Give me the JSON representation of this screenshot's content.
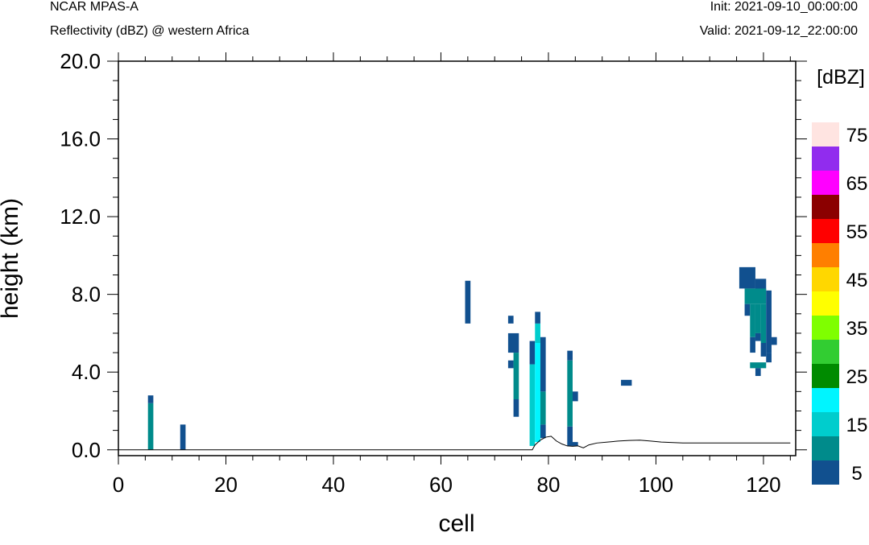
{
  "header": {
    "model": "NCAR MPAS-A",
    "field": "Reflectivity (dBZ) @ western Africa",
    "init": "Init: 2021-09-10_00:00:00",
    "valid": "Valid: 2021-09-12_22:00:00"
  },
  "chart_data": {
    "type": "heatmap",
    "xlabel": "cell",
    "ylabel": "height (km)",
    "xlim": [
      0,
      126
    ],
    "ylim": [
      -0.3,
      20.0
    ],
    "x_ticks": [
      "0",
      "20",
      "40",
      "60",
      "80",
      "100",
      "120"
    ],
    "y_ticks": [
      "0.0",
      "4.0",
      "8.0",
      "12.0",
      "16.0",
      "20.0"
    ],
    "colorbar": {
      "unit_label": "[dBZ]",
      "labels": [
        "5",
        "15",
        "25",
        "35",
        "45",
        "55",
        "65",
        "75"
      ],
      "bins": [
        {
          "from": 0,
          "to": 10,
          "color": "#11508f"
        },
        {
          "from": 10,
          "to": 15,
          "color": "#008b8b"
        },
        {
          "from": 15,
          "to": 20,
          "color": "#00cdcd"
        },
        {
          "from": 20,
          "to": 25,
          "color": "#00f5ff"
        },
        {
          "from": 25,
          "to": 30,
          "color": "#008b00"
        },
        {
          "from": 30,
          "to": 35,
          "color": "#32cd32"
        },
        {
          "from": 35,
          "to": 40,
          "color": "#7fff00"
        },
        {
          "from": 40,
          "to": 45,
          "color": "#ffff00"
        },
        {
          "from": 45,
          "to": 50,
          "color": "#ffd700"
        },
        {
          "from": 50,
          "to": 55,
          "color": "#ff7f00"
        },
        {
          "from": 55,
          "to": 60,
          "color": "#ff0000"
        },
        {
          "from": 60,
          "to": 65,
          "color": "#8b0000"
        },
        {
          "from": 65,
          "to": 70,
          "color": "#ff00ff"
        },
        {
          "from": 70,
          "to": 75,
          "color": "#912cee"
        },
        {
          "from": 75,
          "to": 80,
          "color": "#ffe4e1"
        }
      ]
    },
    "terrain": [
      [
        0,
        0
      ],
      [
        77,
        0
      ],
      [
        77.5,
        0.25
      ],
      [
        78.5,
        0.5
      ],
      [
        79.5,
        0.65
      ],
      [
        80.5,
        0.7
      ],
      [
        81.5,
        0.45
      ],
      [
        82.5,
        0.3
      ],
      [
        83.5,
        0.2
      ],
      [
        84.5,
        0.18
      ],
      [
        85.5,
        0.2
      ],
      [
        86.5,
        0.1
      ],
      [
        87.5,
        0.25
      ],
      [
        89,
        0.35
      ],
      [
        91,
        0.4
      ],
      [
        93,
        0.45
      ],
      [
        95,
        0.48
      ],
      [
        97,
        0.5
      ],
      [
        99,
        0.45
      ],
      [
        101,
        0.4
      ],
      [
        105,
        0.35
      ],
      [
        110,
        0.35
      ],
      [
        115,
        0.35
      ],
      [
        120,
        0.35
      ],
      [
        125,
        0.35
      ]
    ],
    "cells": [
      {
        "x0": 5.5,
        "x1": 6.5,
        "y0": 0.0,
        "y1": 2.4,
        "dbz": 12
      },
      {
        "x0": 5.5,
        "x1": 6.5,
        "y0": 2.4,
        "y1": 2.8,
        "dbz": 6
      },
      {
        "x0": 11.5,
        "x1": 12.5,
        "y0": 0.0,
        "y1": 1.3,
        "dbz": 6
      },
      {
        "x0": 64.5,
        "x1": 65.5,
        "y0": 6.5,
        "y1": 8.7,
        "dbz": 6
      },
      {
        "x0": 72.5,
        "x1": 73.5,
        "y0": 6.5,
        "y1": 6.9,
        "dbz": 6
      },
      {
        "x0": 72.5,
        "x1": 74.5,
        "y0": 5.0,
        "y1": 6.0,
        "dbz": 6
      },
      {
        "x0": 72.5,
        "x1": 73.5,
        "y0": 4.2,
        "y1": 4.6,
        "dbz": 6
      },
      {
        "x0": 73.5,
        "x1": 74.5,
        "y0": 2.6,
        "y1": 5.0,
        "dbz": 12
      },
      {
        "x0": 73.5,
        "x1": 74.5,
        "y0": 1.7,
        "y1": 2.6,
        "dbz": 6
      },
      {
        "x0": 76.5,
        "x1": 77.5,
        "y0": 0.2,
        "y1": 4.4,
        "dbz": 17
      },
      {
        "x0": 76.5,
        "x1": 77.5,
        "y0": 4.4,
        "y1": 5.6,
        "dbz": 6
      },
      {
        "x0": 77.5,
        "x1": 78.5,
        "y0": 0.4,
        "y1": 5.5,
        "dbz": 22
      },
      {
        "x0": 77.5,
        "x1": 78.5,
        "y0": 5.5,
        "y1": 6.5,
        "dbz": 17
      },
      {
        "x0": 77.5,
        "x1": 78.5,
        "y0": 6.5,
        "y1": 7.1,
        "dbz": 6
      },
      {
        "x0": 78.5,
        "x1": 79.5,
        "y0": 0.6,
        "y1": 1.3,
        "dbz": 6
      },
      {
        "x0": 78.5,
        "x1": 79.5,
        "y0": 1.3,
        "y1": 3.0,
        "dbz": 12
      },
      {
        "x0": 78.5,
        "x1": 79.5,
        "y0": 3.0,
        "y1": 5.8,
        "dbz": 6
      },
      {
        "x0": 83.5,
        "x1": 84.5,
        "y0": 0.2,
        "y1": 1.2,
        "dbz": 6
      },
      {
        "x0": 83.5,
        "x1": 84.5,
        "y0": 1.2,
        "y1": 4.6,
        "dbz": 12
      },
      {
        "x0": 83.5,
        "x1": 84.5,
        "y0": 4.6,
        "y1": 5.1,
        "dbz": 6
      },
      {
        "x0": 84.5,
        "x1": 85.5,
        "y0": 2.5,
        "y1": 3.0,
        "dbz": 6
      },
      {
        "x0": 84.5,
        "x1": 85.5,
        "y0": 0.2,
        "y1": 0.4,
        "dbz": 6
      },
      {
        "x0": 93.5,
        "x1": 95.5,
        "y0": 3.3,
        "y1": 3.6,
        "dbz": 6
      },
      {
        "x0": 115.5,
        "x1": 118.5,
        "y0": 8.3,
        "y1": 9.4,
        "dbz": 6
      },
      {
        "x0": 118.5,
        "x1": 120.5,
        "y0": 8.2,
        "y1": 8.8,
        "dbz": 6
      },
      {
        "x0": 116.5,
        "x1": 120.5,
        "y0": 7.5,
        "y1": 8.3,
        "dbz": 12
      },
      {
        "x0": 116.5,
        "x1": 117.5,
        "y0": 6.9,
        "y1": 7.5,
        "dbz": 6
      },
      {
        "x0": 117.5,
        "x1": 118.5,
        "y0": 5.8,
        "y1": 7.5,
        "dbz": 12
      },
      {
        "x0": 117.5,
        "x1": 118.5,
        "y0": 5.8,
        "y1": 5.0,
        "dbz": 6
      },
      {
        "x0": 118.5,
        "x1": 119.5,
        "y0": 6.0,
        "y1": 7.5,
        "dbz": 12
      },
      {
        "x0": 118.5,
        "x1": 119.5,
        "y0": 5.6,
        "y1": 6.0,
        "dbz": 6
      },
      {
        "x0": 119.5,
        "x1": 120.5,
        "y0": 5.5,
        "y1": 7.5,
        "dbz": 12
      },
      {
        "x0": 119.5,
        "x1": 120.5,
        "y0": 4.8,
        "y1": 5.5,
        "dbz": 6
      },
      {
        "x0": 120.5,
        "x1": 121.5,
        "y0": 5.0,
        "y1": 8.2,
        "dbz": 6
      },
      {
        "x0": 121.5,
        "x1": 122.5,
        "y0": 5.4,
        "y1": 5.8,
        "dbz": 6
      },
      {
        "x0": 120.5,
        "x1": 121.5,
        "y0": 4.5,
        "y1": 5.0,
        "dbz": 6
      },
      {
        "x0": 117.5,
        "x1": 120.5,
        "y0": 4.2,
        "y1": 4.5,
        "dbz": 12
      },
      {
        "x0": 118.5,
        "x1": 119.5,
        "y0": 3.8,
        "y1": 4.2,
        "dbz": 6
      }
    ]
  }
}
